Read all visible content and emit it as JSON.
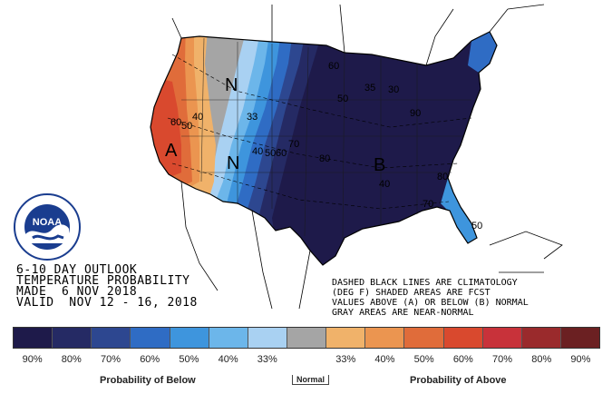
{
  "map": {
    "title_lines": [
      "6-10 DAY OUTLOOK",
      "TEMPERATURE PROBABILITY",
      "MADE  6 NOV 2018",
      "VALID  NOV 12 - 16, 2018"
    ],
    "notes_lines": [
      "DASHED BLACK LINES ARE CLIMATOLOGY",
      "(DEG F) SHADED AREAS ARE FCST",
      "VALUES ABOVE (A) OR BELOW (B) NORMAL",
      "GRAY AREAS ARE NEAR-NORMAL"
    ],
    "region_letters": [
      {
        "letter": "A",
        "meaning": "above"
      },
      {
        "letter": "N",
        "meaning": "near-normal"
      },
      {
        "letter": "N",
        "meaning": "near-normal"
      },
      {
        "letter": "B",
        "meaning": "below"
      }
    ],
    "contour_labels": [
      "60",
      "50",
      "40",
      "33",
      "40",
      "50",
      "60",
      "70",
      "50",
      "60",
      "80",
      "40",
      "35",
      "30",
      "90",
      "70",
      "80",
      "50"
    ],
    "colors": {
      "below_90": "#1e1a4a",
      "below_80": "#252a64",
      "below_70": "#2d4790",
      "below_60": "#2f6cc4",
      "below_50": "#3e95dd",
      "below_40": "#6cb6ea",
      "below_33": "#a9d1f2",
      "near_normal": "#a5a5a5",
      "above_33": "#f0b26a",
      "above_40": "#eb9550",
      "above_50": "#e06c3a",
      "above_60": "#d9492e",
      "above_70": "#c8323a",
      "above_80": "#9a2a2c",
      "above_90": "#6b2022"
    },
    "logo": {
      "name": "NOAA",
      "ring_text": "NATIONAL OCEANIC AND ATMOSPHERIC ADMINISTRATION · U.S. DEPARTMENT OF COMMERCE"
    }
  },
  "legend": {
    "swatches": [
      "#1e1a4a",
      "#252a64",
      "#2d4790",
      "#2f6cc4",
      "#3e95dd",
      "#6cb6ea",
      "#a9d1f2",
      "#a5a5a5",
      "#f0b26a",
      "#eb9550",
      "#e06c3a",
      "#d9492e",
      "#c8323a",
      "#9a2a2c",
      "#6b2022"
    ],
    "labels": [
      "90%",
      "80%",
      "70%",
      "60%",
      "50%",
      "40%",
      "33%",
      "",
      "33%",
      "40%",
      "50%",
      "60%",
      "70%",
      "80%",
      "90%"
    ],
    "below_caption": "Probability of Below",
    "normal_caption": "Normal",
    "above_caption": "Probability of Above"
  }
}
